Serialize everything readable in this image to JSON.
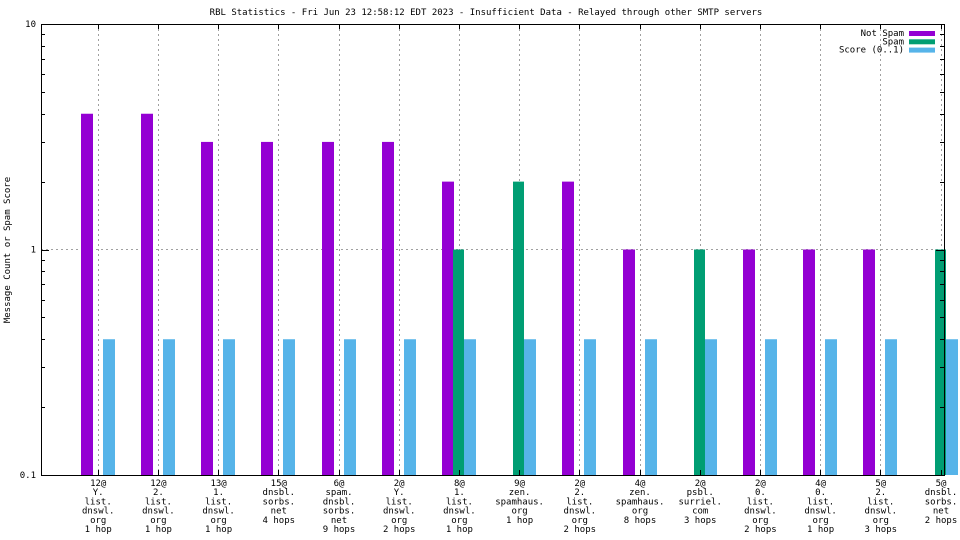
{
  "chart_data": {
    "type": "bar",
    "title": "RBL Statistics - Fri Jun 23 12:58:12 EDT 2023 - Insufficient Data - Relayed through other SMTP servers",
    "xlabel": "",
    "ylabel": "Message Count or Spam Score",
    "yscale": "log",
    "ylim": [
      0.1,
      10
    ],
    "yticks": [
      "10",
      "1",
      "0.1"
    ],
    "ytick_values": [
      10,
      1,
      0.1
    ],
    "grid": true,
    "legend_position": "top-right",
    "categories": [
      [
        "12@",
        "Y.",
        "list.",
        "dnswl.",
        "org",
        "1 hop"
      ],
      [
        "12@",
        "2.",
        "list.",
        "dnswl.",
        "org",
        "1 hop"
      ],
      [
        "13@",
        "1.",
        "list.",
        "dnswl.",
        "org",
        "1 hop"
      ],
      [
        "15@",
        "dnsbl.",
        "sorbs.",
        "net",
        "4 hops"
      ],
      [
        "6@",
        "spam.",
        "dnsbl.",
        "sorbs.",
        "net",
        "9 hops"
      ],
      [
        "2@",
        "Y.",
        "list.",
        "dnswl.",
        "org",
        "2 hops"
      ],
      [
        "8@",
        "1.",
        "list.",
        "dnswl.",
        "org",
        "1 hop"
      ],
      [
        "9@",
        "zen.",
        "spamhaus.",
        "org",
        "1 hop"
      ],
      [
        "2@",
        "2.",
        "list.",
        "dnswl.",
        "org",
        "2 hops"
      ],
      [
        "4@",
        "zen.",
        "spamhaus.",
        "org",
        "8 hops"
      ],
      [
        "2@",
        "psbl.",
        "surriel.",
        "com",
        "3 hops"
      ],
      [
        "2@",
        "0.",
        "list.",
        "dnswl.",
        "org",
        "2 hops"
      ],
      [
        "4@",
        "0.",
        "list.",
        "dnswl.",
        "org",
        "1 hop"
      ],
      [
        "5@",
        "2.",
        "list.",
        "dnswl.",
        "org",
        "3 hops"
      ],
      [
        "5@",
        "dnsbl.",
        "sorbs.",
        "net",
        "2 hops"
      ]
    ],
    "series": [
      {
        "name": "Not Spam",
        "color": "#9400d3",
        "values": [
          4,
          4,
          3,
          3,
          3,
          3,
          2,
          0,
          2,
          1,
          0,
          1,
          1,
          1,
          0
        ]
      },
      {
        "name": "Spam",
        "color": "#009e73",
        "values": [
          0,
          0,
          0,
          0,
          0,
          0,
          1,
          2,
          0,
          0,
          1,
          0,
          0,
          0,
          1
        ]
      },
      {
        "name": "Score (0..1)",
        "color": "#56b4e9",
        "values": [
          0.4,
          0.4,
          0.4,
          0.4,
          0.4,
          0.4,
          0.4,
          0.4,
          0.4,
          0.4,
          0.4,
          0.4,
          0.4,
          0.4,
          0.4
        ]
      }
    ]
  }
}
